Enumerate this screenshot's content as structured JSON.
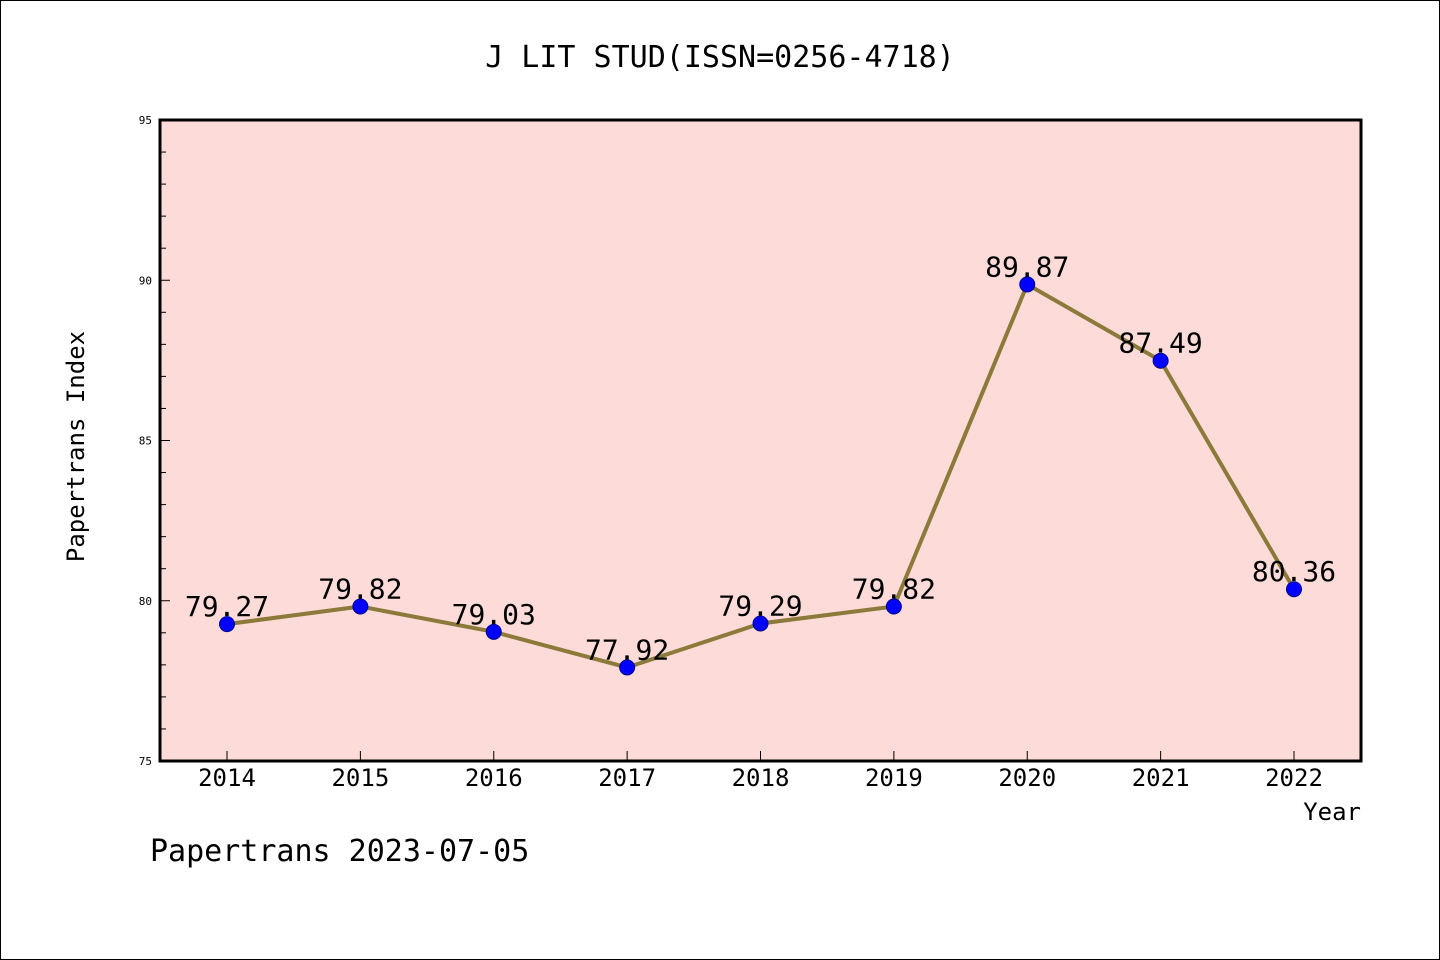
{
  "chart_data": {
    "type": "line",
    "title": "J LIT STUD(ISSN=0256-4718)",
    "xlabel": "Year",
    "ylabel": "Papertrans Index",
    "categories": [
      "2014",
      "2015",
      "2016",
      "2017",
      "2018",
      "2019",
      "2020",
      "2021",
      "2022"
    ],
    "series": [
      {
        "values": [
          79.27,
          79.82,
          79.03,
          77.92,
          79.29,
          79.82,
          89.87,
          87.49,
          80.36
        ],
        "labels": [
          "79.27",
          "79.82",
          "79.03",
          "77.92",
          "79.29",
          "79.82",
          "89.87",
          "87.49",
          "80.36"
        ]
      }
    ],
    "ylim": [
      75,
      95
    ],
    "yticks": [
      "75",
      "80",
      "85",
      "90",
      "95"
    ],
    "grid": false,
    "colors": {
      "background": "#fddbd8",
      "line": "#8b7a3a",
      "marker": "#0000ff",
      "axis": "#000000"
    }
  },
  "footer": "Papertrans 2023-07-05"
}
